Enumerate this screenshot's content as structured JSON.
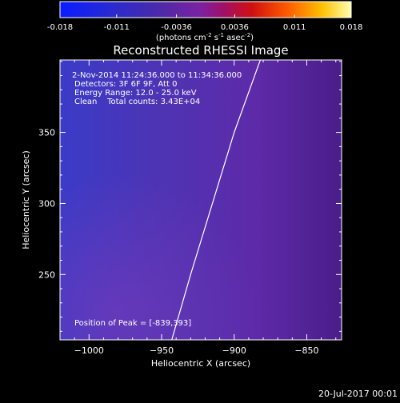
{
  "colorbar": {
    "tick_labels": [
      "-0.018",
      "-0.011",
      "-0.0036",
      "0.0036",
      "0.011",
      "0.018"
    ],
    "range": [
      -0.018,
      0.018
    ],
    "units_prefix": "(photons cm",
    "units_exp1": "-2",
    "units_mid": " s",
    "units_exp2": "-1",
    "units_mid2": " asec",
    "units_exp3": "-2",
    "units_suffix": ")"
  },
  "chart_data": {
    "type": "heatmap",
    "title": "Reconstructed RHESSI Image",
    "xlabel": "Heliocentric X (arcsec)",
    "ylabel": "Heliocentric Y (arcsec)",
    "xlim": [
      -1020,
      -826
    ],
    "ylim": [
      204,
      401
    ],
    "xticks": [
      -1000,
      -950,
      -900,
      -850
    ],
    "xtick_labels": [
      "−1000",
      "−950",
      "−900",
      "−850"
    ],
    "yticks": [
      250,
      300,
      350
    ],
    "ytick_labels": [
      "250",
      "300",
      "350"
    ],
    "colormap": "purple-red-yellow (hot) on blue",
    "annotations": [
      "2-Nov-2014 11:24:36.000 to 11:34:36.000",
      "Detectors: 3F 6F 9F, Att 0",
      "Energy Range: 12.0 - 25.0 keV",
      "Clean    Total counts: 3.43E+04"
    ],
    "peak_label": "Position of Peak = [-839,393]",
    "peak": [
      -839,
      393
    ],
    "limb_points": [
      [
        -943,
        204
      ],
      [
        -930,
        250
      ],
      [
        -915,
        300
      ],
      [
        -900,
        350
      ],
      [
        -882,
        401
      ]
    ]
  },
  "footer": {
    "date": "20-Jul-2017 00:01"
  }
}
